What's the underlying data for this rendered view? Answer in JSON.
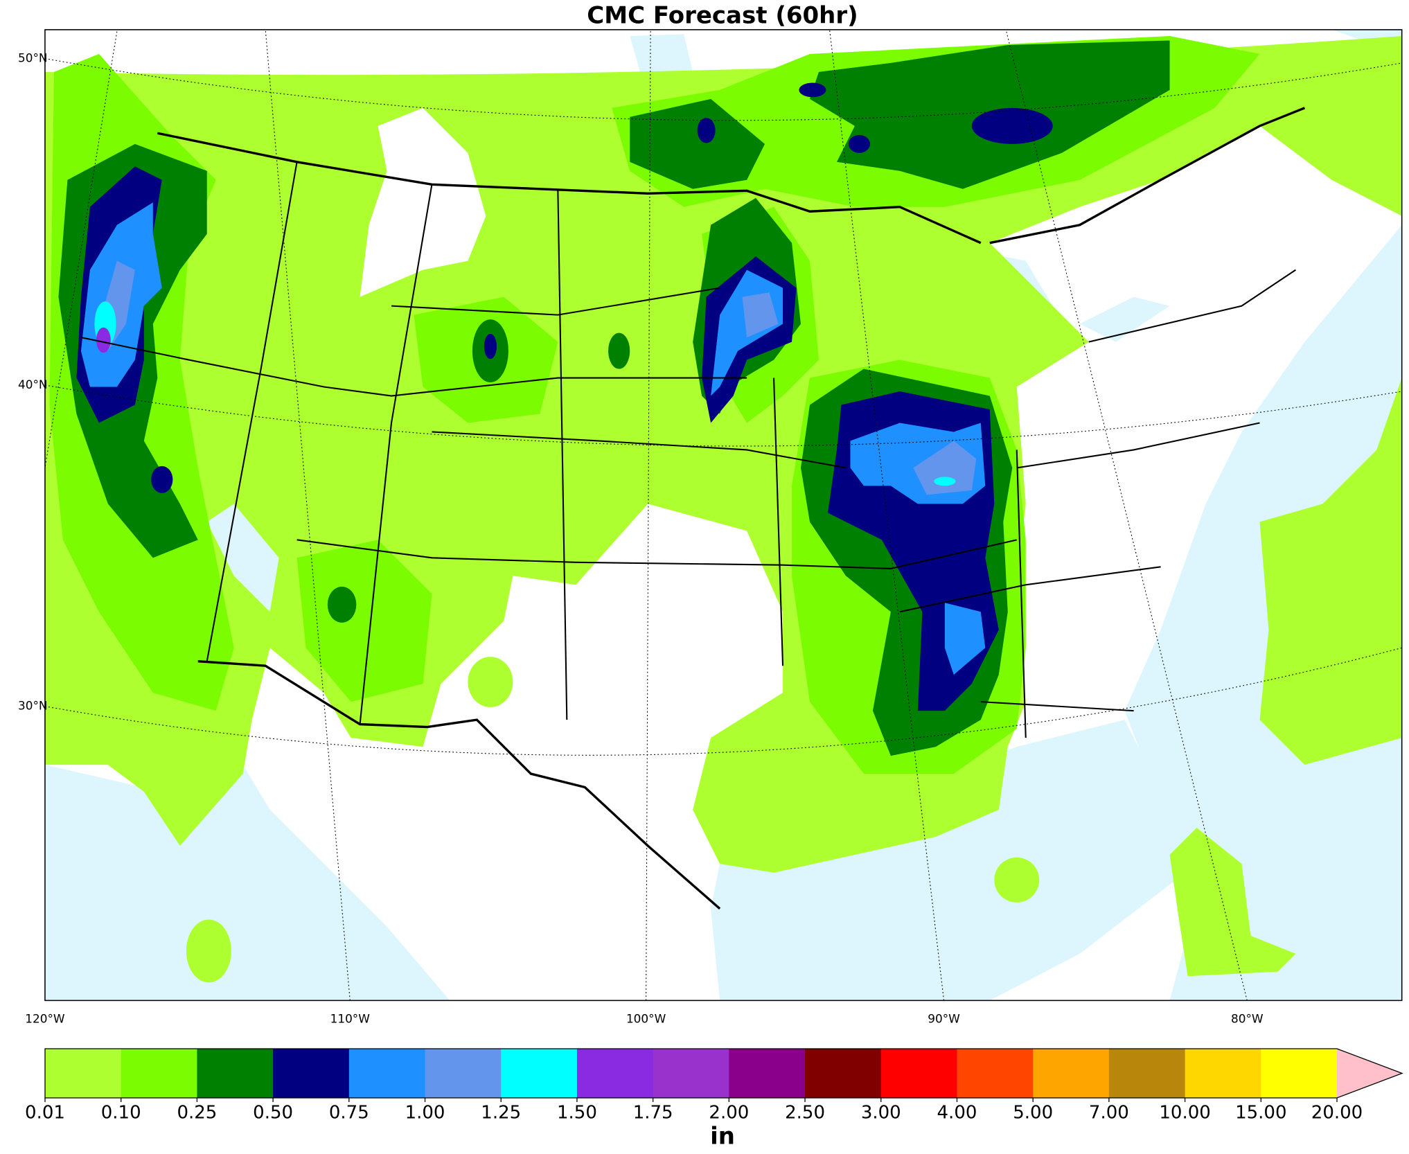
{
  "title": "CMC Forecast (60hr)",
  "map": {
    "lat_labels": [
      "50°N",
      "40°N",
      "30°N"
    ],
    "lon_labels": [
      "120°W",
      "110°W",
      "100°W",
      "90°W",
      "80°W"
    ]
  },
  "colorbar": {
    "levels": [
      0.01,
      {
        "value": 0.1,
        "label": "0.10"
      },
      0.25,
      {
        "value": 0.5,
        "label": "0.50"
      },
      0.75,
      {
        "value": 1,
        "label": "1.00"
      },
      1.25,
      {
        "value": 1.5,
        "label": "1.50"
      },
      1.75,
      {
        "value": 2,
        "label": "2.00"
      },
      {
        "value": 2.5,
        "label": "2.50"
      },
      {
        "value": 3,
        "label": "3.00"
      },
      {
        "value": 4,
        "label": "4.00"
      },
      {
        "value": 5,
        "label": "5.00"
      },
      {
        "value": 7,
        "label": "7.00"
      },
      {
        "value": 10,
        "label": "10.00"
      },
      {
        "value": 15,
        "label": "15.00"
      },
      {
        "value": 20,
        "label": "20.00"
      }
    ],
    "colors": [
      "#adff2f",
      "#7cfc00",
      "#008000",
      "#000080",
      "#1e90ff",
      "#6495ed",
      "#00ffff",
      "#8a2be2",
      "#9932cc",
      "#8b008b",
      "#800000",
      "#ff0000",
      "#ff4500",
      "#ffa500",
      "#b8860b",
      "#ffd700",
      "#ffff00"
    ],
    "extend_color": "#ffc0cb",
    "label": "in"
  }
}
